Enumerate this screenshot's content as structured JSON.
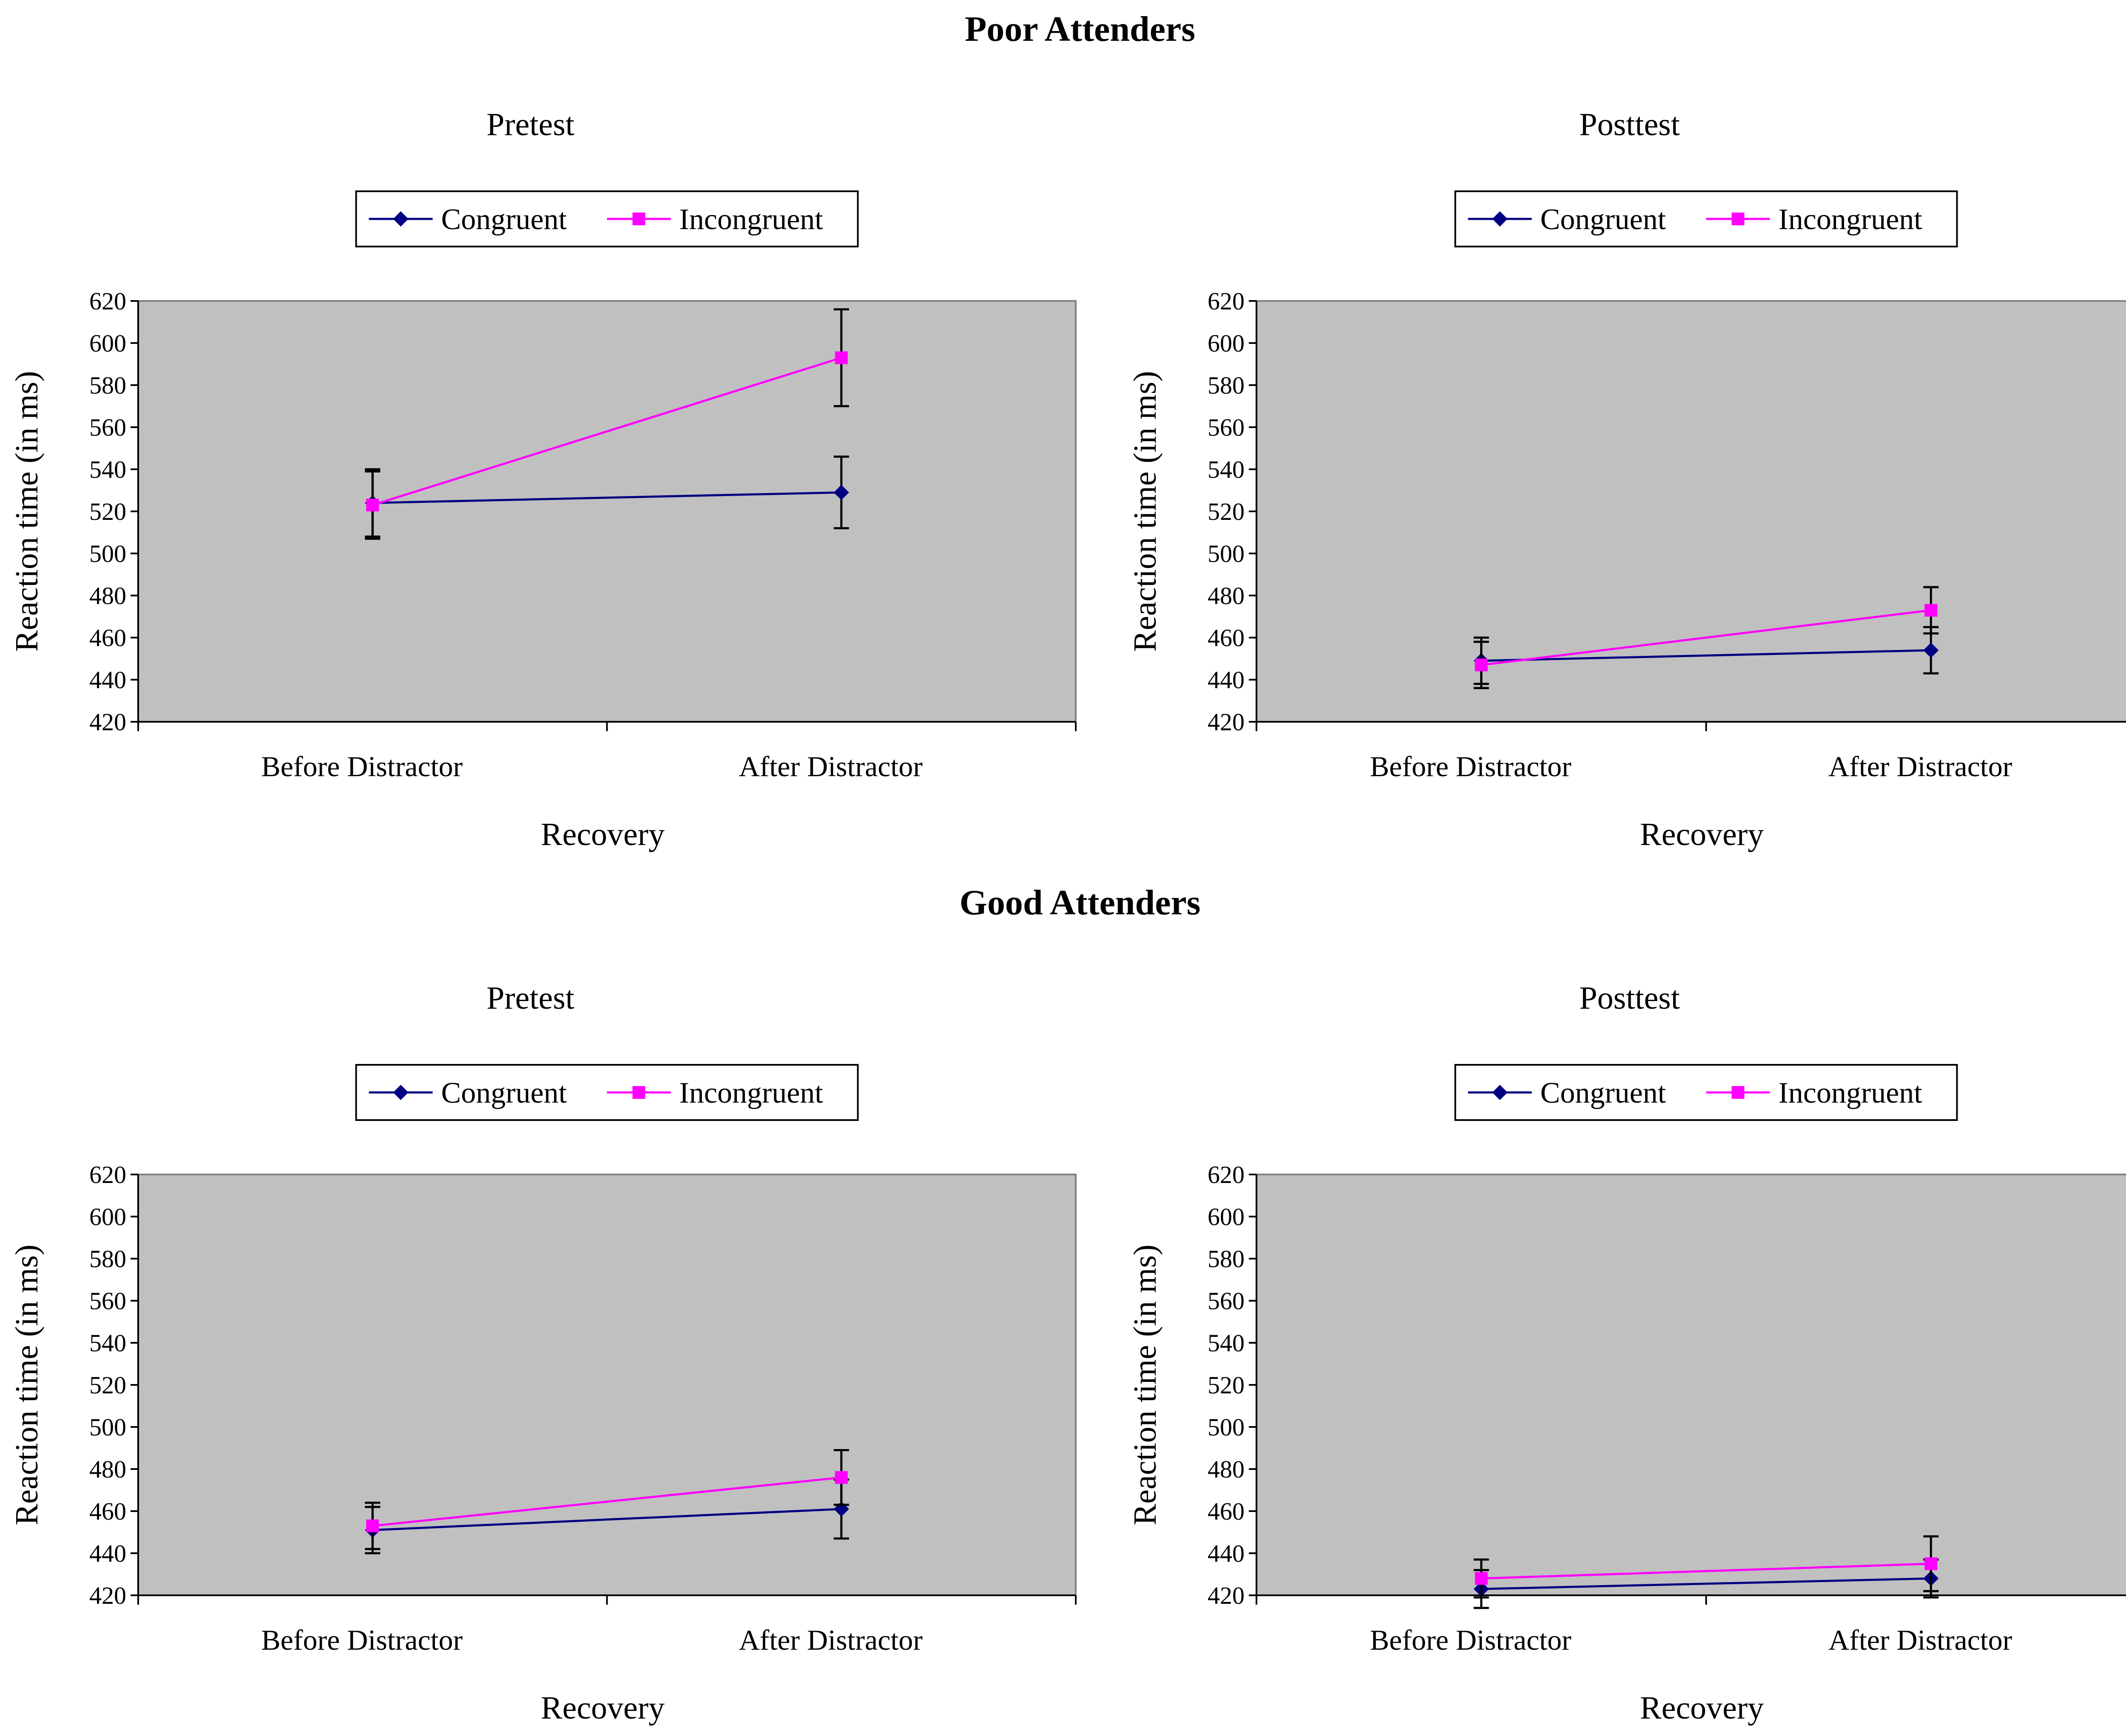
{
  "figure": {
    "groups": [
      {
        "title": "Poor Attenders"
      },
      {
        "title": "Good Attenders"
      }
    ]
  },
  "chart_data": [
    {
      "type": "line",
      "group": "Poor Attenders",
      "title": "Pretest",
      "xlabel": "Recovery",
      "ylabel": "Reaction time (in ms)",
      "categories": [
        "Before Distractor",
        "After Distractor"
      ],
      "ylim": [
        420,
        620
      ],
      "yticks": [
        420,
        440,
        460,
        480,
        500,
        520,
        540,
        560,
        580,
        600,
        620
      ],
      "legend": "top",
      "series": [
        {
          "name": "Congruent",
          "values": [
            524,
            529
          ],
          "error": [
            16,
            17
          ],
          "color": "#000080",
          "marker": "diamond"
        },
        {
          "name": "Incongruent",
          "values": [
            523,
            593
          ],
          "error": [
            16,
            23
          ],
          "color": "#ff00ff",
          "marker": "square"
        }
      ]
    },
    {
      "type": "line",
      "group": "Poor Attenders",
      "title": "Posttest",
      "xlabel": "Recovery",
      "ylabel": "Reaction time (in ms)",
      "categories": [
        "Before Distractor",
        "After Distractor"
      ],
      "ylim": [
        420,
        620
      ],
      "yticks": [
        420,
        440,
        460,
        480,
        500,
        520,
        540,
        560,
        580,
        600,
        620
      ],
      "legend": "top",
      "series": [
        {
          "name": "Congruent",
          "values": [
            449,
            454
          ],
          "error": [
            11,
            11
          ],
          "color": "#000080",
          "marker": "diamond"
        },
        {
          "name": "Incongruent",
          "values": [
            447,
            473
          ],
          "error": [
            11,
            11
          ],
          "color": "#ff00ff",
          "marker": "square"
        }
      ]
    },
    {
      "type": "line",
      "group": "Good Attenders",
      "title": "Pretest",
      "xlabel": "Recovery",
      "ylabel": "Reaction time (in ms)",
      "categories": [
        "Before Distractor",
        "After Distractor"
      ],
      "ylim": [
        420,
        620
      ],
      "yticks": [
        420,
        440,
        460,
        480,
        500,
        520,
        540,
        560,
        580,
        600,
        620
      ],
      "legend": "top",
      "series": [
        {
          "name": "Congruent",
          "values": [
            451,
            461
          ],
          "error": [
            11,
            14
          ],
          "color": "#000080",
          "marker": "diamond"
        },
        {
          "name": "Incongruent",
          "values": [
            453,
            476
          ],
          "error": [
            11,
            13
          ],
          "color": "#ff00ff",
          "marker": "square"
        }
      ]
    },
    {
      "type": "line",
      "group": "Good Attenders",
      "title": "Posttest",
      "xlabel": "Recovery",
      "ylabel": "Reaction time (in ms)",
      "categories": [
        "Before Distractor",
        "After Distractor"
      ],
      "ylim": [
        420,
        620
      ],
      "yticks": [
        420,
        440,
        460,
        480,
        500,
        520,
        540,
        560,
        580,
        600,
        620
      ],
      "legend": "top",
      "series": [
        {
          "name": "Congruent",
          "values": [
            423,
            428
          ],
          "error": [
            9,
            9
          ],
          "color": "#000080",
          "marker": "diamond"
        },
        {
          "name": "Incongruent",
          "values": [
            428,
            435
          ],
          "error": [
            9,
            13
          ],
          "color": "#ff00ff",
          "marker": "square"
        }
      ]
    }
  ]
}
